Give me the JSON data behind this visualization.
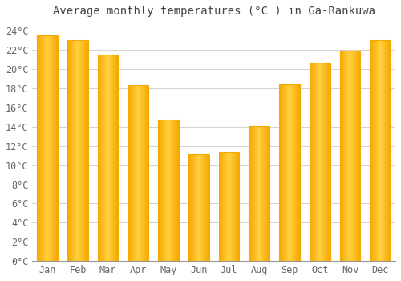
{
  "title": "Average monthly temperatures (°C ) in Ga-Rankuwa",
  "months": [
    "Jan",
    "Feb",
    "Mar",
    "Apr",
    "May",
    "Jun",
    "Jul",
    "Aug",
    "Sep",
    "Oct",
    "Nov",
    "Dec"
  ],
  "values": [
    23.5,
    23.0,
    21.5,
    18.3,
    14.7,
    11.1,
    11.4,
    14.1,
    18.4,
    20.7,
    21.9,
    23.0
  ],
  "bar_color_center": "#FFD040",
  "bar_color_edge": "#F5A800",
  "background_color": "#FFFFFF",
  "plot_bg_color": "#FFFFFF",
  "grid_color": "#CCCCCC",
  "ylim": [
    0,
    25
  ],
  "yticks": [
    0,
    2,
    4,
    6,
    8,
    10,
    12,
    14,
    16,
    18,
    20,
    22,
    24
  ],
  "title_fontsize": 10,
  "tick_fontsize": 8.5,
  "title_color": "#444444",
  "tick_color": "#666666",
  "bar_width": 0.68
}
